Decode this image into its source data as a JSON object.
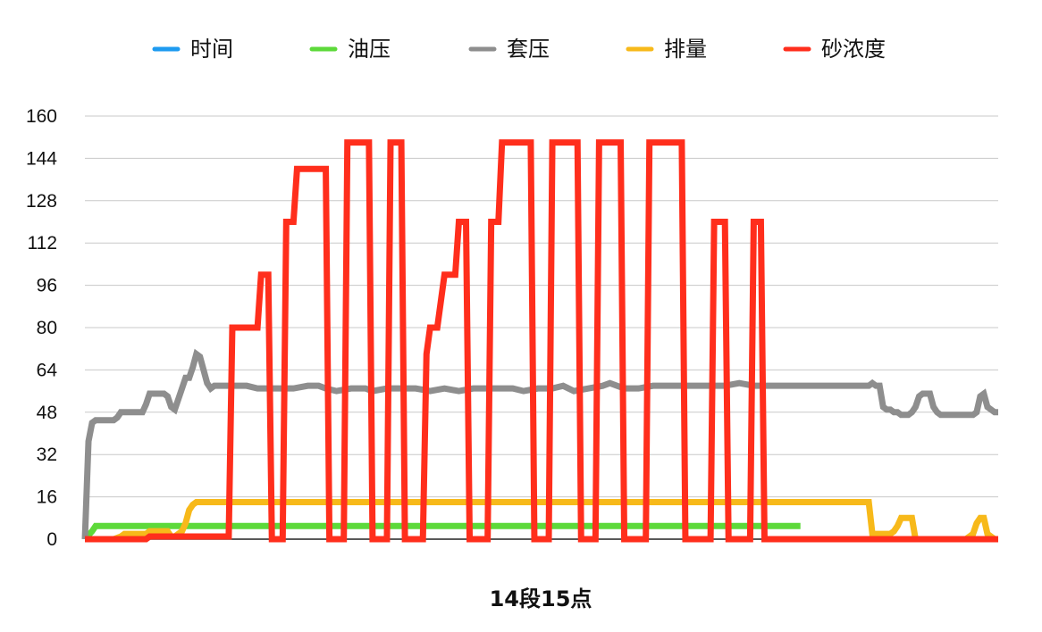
{
  "chart_data": {
    "type": "line",
    "title": "",
    "xlabel": "14段15点",
    "ylabel": "",
    "ylim": [
      0,
      160
    ],
    "yticks": [
      0,
      16,
      32,
      48,
      64,
      80,
      96,
      112,
      128,
      144,
      160
    ],
    "grid": true,
    "legend_position": "top",
    "x_count": 200,
    "series": [
      {
        "name": "时间",
        "color": "#1E9BF0",
        "points": []
      },
      {
        "name": "油压",
        "color": "#5DD93A",
        "points": [
          [
            0,
            0
          ],
          [
            2,
            3
          ],
          [
            3,
            5
          ],
          [
            199,
            5
          ]
        ]
      },
      {
        "name": "套压",
        "color": "#8E8E8E",
        "points": [
          [
            0,
            0
          ],
          [
            1,
            37
          ],
          [
            2,
            44
          ],
          [
            3,
            45
          ],
          [
            4,
            45
          ],
          [
            5,
            45
          ],
          [
            6,
            45
          ],
          [
            7,
            45
          ],
          [
            8,
            45
          ],
          [
            9,
            46
          ],
          [
            10,
            48
          ],
          [
            11,
            48
          ],
          [
            12,
            48
          ],
          [
            13,
            48
          ],
          [
            14,
            48
          ],
          [
            15,
            48
          ],
          [
            16,
            48
          ],
          [
            17,
            51
          ],
          [
            18,
            55
          ],
          [
            19,
            55
          ],
          [
            20,
            55
          ],
          [
            21,
            55
          ],
          [
            22,
            55
          ],
          [
            23,
            54
          ],
          [
            24,
            50
          ],
          [
            25,
            49
          ],
          [
            26,
            53
          ],
          [
            27,
            57
          ],
          [
            28,
            61
          ],
          [
            29,
            61
          ],
          [
            30,
            65
          ],
          [
            31,
            70
          ],
          [
            32,
            69
          ],
          [
            33,
            64
          ],
          [
            34,
            59
          ],
          [
            35,
            57
          ],
          [
            36,
            58
          ],
          [
            37,
            58
          ],
          [
            38,
            58
          ],
          [
            39,
            58
          ],
          [
            40,
            58
          ],
          [
            45,
            58
          ],
          [
            48,
            57
          ],
          [
            52,
            57
          ],
          [
            55,
            57
          ],
          [
            58,
            57
          ],
          [
            62,
            58
          ],
          [
            65,
            58
          ],
          [
            67,
            57
          ],
          [
            70,
            56
          ],
          [
            74,
            57
          ],
          [
            78,
            57
          ],
          [
            80,
            56
          ],
          [
            84,
            57
          ],
          [
            88,
            57
          ],
          [
            92,
            57
          ],
          [
            96,
            56
          ],
          [
            100,
            57
          ],
          [
            104,
            56
          ],
          [
            108,
            57
          ],
          [
            112,
            57
          ],
          [
            116,
            57
          ],
          [
            119,
            57
          ],
          [
            122,
            56
          ],
          [
            126,
            57
          ],
          [
            130,
            57
          ],
          [
            133,
            58
          ],
          [
            136,
            56
          ],
          [
            140,
            57
          ],
          [
            144,
            58
          ],
          [
            146,
            59
          ],
          [
            150,
            57
          ],
          [
            154,
            57
          ],
          [
            158,
            58
          ],
          [
            162,
            58
          ],
          [
            166,
            58
          ],
          [
            170,
            58
          ],
          [
            174,
            58
          ],
          [
            178,
            58
          ],
          [
            182,
            59
          ],
          [
            186,
            58
          ],
          [
            190,
            58
          ],
          [
            194,
            58
          ],
          [
            198,
            58
          ],
          [
            200,
            58
          ],
          [
            218,
            58
          ],
          [
            219,
            59
          ],
          [
            220,
            58
          ],
          [
            221,
            58
          ],
          [
            222,
            50
          ],
          [
            223,
            49
          ],
          [
            224,
            49
          ],
          [
            225,
            48
          ],
          [
            226,
            48
          ],
          [
            227,
            47
          ],
          [
            228,
            47
          ],
          [
            229,
            47
          ],
          [
            230,
            48
          ],
          [
            231,
            50
          ],
          [
            232,
            54
          ],
          [
            233,
            55
          ],
          [
            234,
            55
          ],
          [
            235,
            55
          ],
          [
            236,
            50
          ],
          [
            237,
            48
          ],
          [
            238,
            47
          ],
          [
            239,
            47
          ],
          [
            240,
            47
          ],
          [
            241,
            47
          ],
          [
            242,
            47
          ],
          [
            243,
            47
          ],
          [
            244,
            47
          ],
          [
            245,
            47
          ],
          [
            246,
            47
          ],
          [
            247,
            47
          ],
          [
            248,
            48
          ],
          [
            249,
            54
          ],
          [
            250,
            55
          ],
          [
            251,
            50
          ],
          [
            252,
            49
          ],
          [
            253,
            48
          ],
          [
            254,
            48
          ]
        ]
      },
      {
        "name": "排量",
        "color": "#F7B91A",
        "points": [
          [
            0,
            0
          ],
          [
            5,
            0
          ],
          [
            8,
            0
          ],
          [
            10,
            1
          ],
          [
            11,
            2
          ],
          [
            12,
            2
          ],
          [
            16,
            2
          ],
          [
            17,
            2
          ],
          [
            18,
            3
          ],
          [
            20,
            3
          ],
          [
            21,
            3
          ],
          [
            22,
            3
          ],
          [
            23,
            3
          ],
          [
            24,
            1
          ],
          [
            25,
            1
          ],
          [
            26,
            2
          ],
          [
            27,
            3
          ],
          [
            28,
            6
          ],
          [
            29,
            11
          ],
          [
            30,
            13
          ],
          [
            31,
            14
          ],
          [
            200,
            14
          ],
          [
            217,
            14
          ],
          [
            218,
            14
          ],
          [
            219,
            2
          ],
          [
            220,
            2
          ],
          [
            222,
            2
          ],
          [
            224,
            2
          ],
          [
            225,
            3
          ],
          [
            226,
            5
          ],
          [
            227,
            8
          ],
          [
            228,
            8
          ],
          [
            229,
            8
          ],
          [
            230,
            8
          ],
          [
            231,
            0
          ],
          [
            232,
            0
          ],
          [
            240,
            0
          ],
          [
            244,
            0
          ],
          [
            245,
            0
          ],
          [
            246,
            1
          ],
          [
            247,
            2
          ],
          [
            248,
            6
          ],
          [
            249,
            8
          ],
          [
            250,
            8
          ],
          [
            251,
            2
          ],
          [
            252,
            1
          ],
          [
            253,
            0
          ],
          [
            254,
            0
          ]
        ]
      },
      {
        "name": "砂浓度",
        "color": "#FF2E1C",
        "points": [
          [
            0,
            0
          ],
          [
            17,
            0
          ],
          [
            18,
            1
          ],
          [
            40,
            1
          ],
          [
            41,
            80
          ],
          [
            42,
            80
          ],
          [
            48,
            80
          ],
          [
            49,
            100
          ],
          [
            51,
            100
          ],
          [
            52,
            0
          ],
          [
            55,
            0
          ],
          [
            56,
            120
          ],
          [
            57,
            120
          ],
          [
            58,
            120
          ],
          [
            59,
            140
          ],
          [
            60,
            140
          ],
          [
            67,
            140
          ],
          [
            68,
            0
          ],
          [
            72,
            0
          ],
          [
            73,
            150
          ],
          [
            74,
            150
          ],
          [
            79,
            150
          ],
          [
            80,
            0
          ],
          [
            84,
            0
          ],
          [
            85,
            150
          ],
          [
            86,
            150
          ],
          [
            88,
            150
          ],
          [
            89,
            0
          ],
          [
            94,
            0
          ],
          [
            95,
            70
          ],
          [
            96,
            80
          ],
          [
            97,
            80
          ],
          [
            98,
            80
          ],
          [
            99,
            90
          ],
          [
            100,
            100
          ],
          [
            103,
            100
          ],
          [
            104,
            120
          ],
          [
            105,
            120
          ],
          [
            106,
            120
          ],
          [
            107,
            0
          ],
          [
            112,
            0
          ],
          [
            113,
            120
          ],
          [
            114,
            120
          ],
          [
            115,
            120
          ],
          [
            116,
            150
          ],
          [
            117,
            150
          ],
          [
            124,
            150
          ],
          [
            125,
            0
          ],
          [
            129,
            0
          ],
          [
            130,
            150
          ],
          [
            131,
            150
          ],
          [
            137,
            150
          ],
          [
            138,
            0
          ],
          [
            142,
            0
          ],
          [
            143,
            150
          ],
          [
            144,
            150
          ],
          [
            149,
            150
          ],
          [
            150,
            0
          ],
          [
            156,
            0
          ],
          [
            157,
            150
          ],
          [
            158,
            150
          ],
          [
            166,
            150
          ],
          [
            167,
            0
          ],
          [
            174,
            0
          ],
          [
            175,
            120
          ],
          [
            176,
            120
          ],
          [
            178,
            120
          ],
          [
            179,
            0
          ],
          [
            185,
            0
          ],
          [
            186,
            120
          ],
          [
            187,
            120
          ],
          [
            188,
            120
          ],
          [
            189,
            0
          ],
          [
            200,
            0
          ],
          [
            254,
            0
          ]
        ]
      }
    ]
  }
}
